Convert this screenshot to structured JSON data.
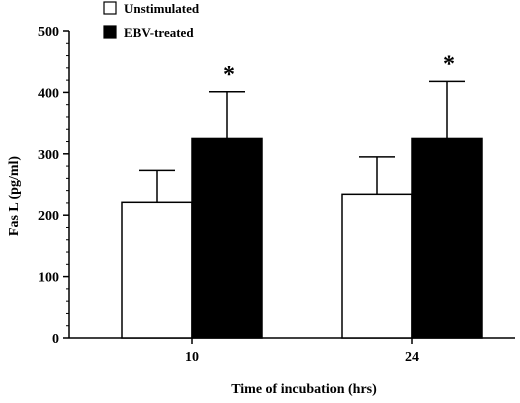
{
  "chart_data": {
    "type": "bar",
    "categories": [
      "10",
      "24"
    ],
    "series": [
      {
        "name": "Unstimulated",
        "values": [
          221,
          234
        ],
        "errors": [
          52,
          61
        ],
        "color": "#ffffff"
      },
      {
        "name": "EBV-treated",
        "values": [
          325,
          325
        ],
        "errors": [
          76,
          93
        ],
        "color": "#000000"
      }
    ],
    "significance": [
      {
        "category": "10",
        "series": "EBV-treated",
        "marker": "*"
      },
      {
        "category": "24",
        "series": "EBV-treated",
        "marker": "*"
      }
    ],
    "xlabel": "Time of incubation (hrs)",
    "ylabel": "Fas L (pg/ml)",
    "ylim": [
      0,
      500
    ],
    "yticks": [
      0,
      100,
      200,
      300,
      400,
      500
    ],
    "legend_position": "top-left",
    "grid": false,
    "error_bars": "upper"
  }
}
